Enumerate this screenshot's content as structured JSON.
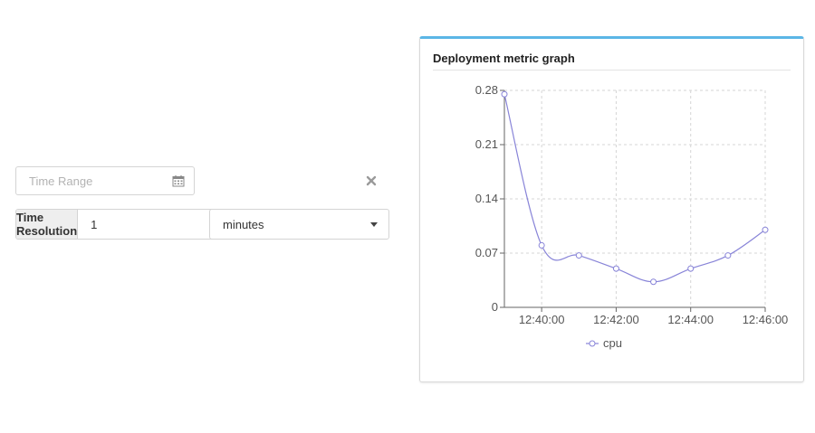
{
  "controls": {
    "time_range_placeholder": "Time Range",
    "time_resolution_label": "Time Resolution",
    "time_resolution_value": "1",
    "unit_selected": "minutes"
  },
  "card": {
    "title": "Deployment metric graph"
  },
  "chart_data": {
    "type": "line",
    "title": "Deployment metric graph",
    "xlabel": "",
    "ylabel": "",
    "x": [
      "12:39:00",
      "12:40:00",
      "12:41:00",
      "12:42:00",
      "12:43:00",
      "12:44:00",
      "12:45:00",
      "12:46:00"
    ],
    "x_ticks": [
      "12:40:00",
      "12:42:00",
      "12:44:00",
      "12:46:00"
    ],
    "y_ticks": [
      "0",
      "0.07",
      "0.14",
      "0.21",
      "0.28"
    ],
    "ylim": [
      0,
      0.28
    ],
    "grid": true,
    "legend": "bottom",
    "series": [
      {
        "name": "cpu",
        "color": "#8884d8",
        "values": [
          0.275,
          0.08,
          0.067,
          0.05,
          0.033,
          0.05,
          0.067,
          0.1
        ]
      }
    ]
  }
}
